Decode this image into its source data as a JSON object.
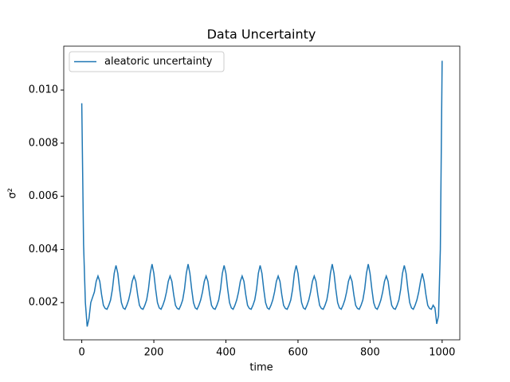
{
  "chart_data": {
    "type": "line",
    "title": "Data Uncertainty",
    "xlabel": "time",
    "ylabel": "σ²",
    "xlim": [
      -50,
      1049
    ],
    "ylim": [
      0.0006,
      0.01165
    ],
    "xticks": [
      0,
      200,
      400,
      600,
      800,
      1000
    ],
    "yticks": [
      0.002,
      0.004,
      0.006,
      0.008,
      {
        "value": 0.01,
        "label": "0.010"
      }
    ],
    "legend": "upper left",
    "x": [
      0,
      5,
      10,
      15,
      20,
      25,
      30,
      35,
      40,
      45,
      50,
      55,
      60,
      65,
      70,
      75,
      80,
      85,
      90,
      95,
      100,
      105,
      110,
      115,
      120,
      125,
      130,
      135,
      140,
      145,
      150,
      155,
      160,
      165,
      170,
      175,
      180,
      185,
      190,
      195,
      200,
      205,
      210,
      215,
      220,
      225,
      230,
      235,
      240,
      245,
      250,
      255,
      260,
      265,
      270,
      275,
      280,
      285,
      290,
      295,
      300,
      305,
      310,
      315,
      320,
      325,
      330,
      335,
      340,
      345,
      350,
      355,
      360,
      365,
      370,
      375,
      380,
      385,
      390,
      395,
      400,
      405,
      410,
      415,
      420,
      425,
      430,
      435,
      440,
      445,
      450,
      455,
      460,
      465,
      470,
      475,
      480,
      485,
      490,
      495,
      500,
      505,
      510,
      515,
      520,
      525,
      530,
      535,
      540,
      545,
      550,
      555,
      560,
      565,
      570,
      575,
      580,
      585,
      590,
      595,
      600,
      605,
      610,
      615,
      620,
      625,
      630,
      635,
      640,
      645,
      650,
      655,
      660,
      665,
      670,
      675,
      680,
      685,
      690,
      695,
      700,
      705,
      710,
      715,
      720,
      725,
      730,
      735,
      740,
      745,
      750,
      755,
      760,
      765,
      770,
      775,
      780,
      785,
      790,
      795,
      800,
      805,
      810,
      815,
      820,
      825,
      830,
      835,
      840,
      845,
      850,
      855,
      860,
      865,
      870,
      875,
      880,
      885,
      890,
      895,
      900,
      905,
      910,
      915,
      920,
      925,
      930,
      935,
      940,
      945,
      950,
      955,
      960,
      965,
      970,
      975,
      980,
      985,
      990,
      995,
      1000
    ],
    "series": [
      {
        "name": "aleatoric uncertainty",
        "color": "#1f77b4",
        "values": [
          0.0095,
          0.0042,
          0.002,
          0.0011,
          0.0014,
          0.002,
          0.0022,
          0.0024,
          0.0028,
          0.003,
          0.0028,
          0.0023,
          0.0019,
          0.00178,
          0.00175,
          0.0019,
          0.0021,
          0.0025,
          0.0031,
          0.0034,
          0.0031,
          0.0025,
          0.002,
          0.0018,
          0.00175,
          0.0019,
          0.0021,
          0.0024,
          0.0028,
          0.003,
          0.0028,
          0.0023,
          0.0019,
          0.00178,
          0.00175,
          0.0019,
          0.0021,
          0.0025,
          0.0031,
          0.00345,
          0.0031,
          0.0025,
          0.002,
          0.0018,
          0.00175,
          0.0019,
          0.0021,
          0.0024,
          0.0028,
          0.003,
          0.0028,
          0.0023,
          0.0019,
          0.00178,
          0.00175,
          0.0019,
          0.0021,
          0.0025,
          0.0031,
          0.00345,
          0.0031,
          0.0025,
          0.002,
          0.0018,
          0.00175,
          0.0019,
          0.0021,
          0.0024,
          0.0028,
          0.003,
          0.0028,
          0.0023,
          0.0019,
          0.00178,
          0.00175,
          0.0019,
          0.0021,
          0.0025,
          0.0031,
          0.0034,
          0.0031,
          0.0025,
          0.002,
          0.0018,
          0.00175,
          0.0019,
          0.0021,
          0.0024,
          0.0028,
          0.003,
          0.0028,
          0.0023,
          0.0019,
          0.00178,
          0.00175,
          0.0019,
          0.0021,
          0.0025,
          0.0031,
          0.0034,
          0.0031,
          0.0025,
          0.002,
          0.0018,
          0.00175,
          0.0019,
          0.0021,
          0.0024,
          0.0028,
          0.003,
          0.0028,
          0.0023,
          0.0019,
          0.00178,
          0.00175,
          0.0019,
          0.0021,
          0.0025,
          0.0031,
          0.0034,
          0.0031,
          0.0025,
          0.002,
          0.0018,
          0.00175,
          0.0019,
          0.0021,
          0.0024,
          0.0028,
          0.003,
          0.0028,
          0.0023,
          0.0019,
          0.00178,
          0.00175,
          0.0019,
          0.0021,
          0.0025,
          0.0031,
          0.00345,
          0.0031,
          0.0025,
          0.002,
          0.0018,
          0.00175,
          0.0019,
          0.0021,
          0.0024,
          0.0028,
          0.003,
          0.0028,
          0.0023,
          0.0019,
          0.00178,
          0.00175,
          0.0019,
          0.0021,
          0.0025,
          0.0031,
          0.00345,
          0.0031,
          0.0025,
          0.002,
          0.0018,
          0.00175,
          0.0019,
          0.0021,
          0.0024,
          0.0028,
          0.003,
          0.0028,
          0.0023,
          0.0019,
          0.00178,
          0.00175,
          0.0019,
          0.0021,
          0.0025,
          0.0031,
          0.0034,
          0.0031,
          0.0025,
          0.002,
          0.0018,
          0.00175,
          0.0019,
          0.0021,
          0.0024,
          0.0028,
          0.0031,
          0.0028,
          0.0023,
          0.0019,
          0.00178,
          0.00175,
          0.0019,
          0.0018,
          0.0012,
          0.0015,
          0.004,
          0.0111
        ]
      }
    ]
  }
}
